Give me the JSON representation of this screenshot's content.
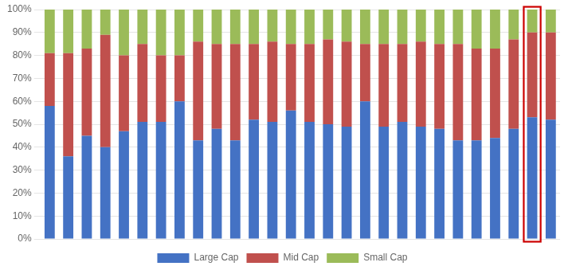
{
  "chart_data": {
    "type": "bar",
    "stacked": true,
    "categories": [
      null,
      null,
      null,
      null,
      null,
      null,
      null,
      null,
      null,
      null,
      null,
      null,
      null,
      null,
      null,
      null,
      null,
      null,
      null,
      null,
      null,
      null,
      null,
      null,
      null,
      null,
      null,
      null
    ],
    "series": [
      {
        "name": "Large Cap",
        "color": "#4472C4",
        "values": [
          0.58,
          0.36,
          0.45,
          0.4,
          0.47,
          0.51,
          0.51,
          0.6,
          0.43,
          0.48,
          0.43,
          0.52,
          0.51,
          0.56,
          0.51,
          0.5,
          0.49,
          0.6,
          0.49,
          0.51,
          0.49,
          0.48,
          0.43,
          0.43,
          0.44,
          0.48,
          0.53,
          0.52
        ]
      },
      {
        "name": "Mid Cap",
        "color": "#C0504D",
        "values": [
          0.23,
          0.45,
          0.38,
          0.49,
          0.33,
          0.34,
          0.29,
          0.2,
          0.43,
          0.37,
          0.42,
          0.33,
          0.35,
          0.29,
          0.34,
          0.37,
          0.37,
          0.25,
          0.36,
          0.34,
          0.37,
          0.37,
          0.42,
          0.4,
          0.39,
          0.39,
          0.37,
          0.38
        ]
      },
      {
        "name": "Small Cap",
        "color": "#9BBB59",
        "values": [
          0.19,
          0.19,
          0.17,
          0.11,
          0.2,
          0.15,
          0.2,
          0.2,
          0.14,
          0.15,
          0.15,
          0.15,
          0.14,
          0.15,
          0.15,
          0.13,
          0.14,
          0.15,
          0.15,
          0.15,
          0.14,
          0.15,
          0.15,
          0.17,
          0.17,
          0.13,
          0.1,
          0.1
        ]
      }
    ],
    "ylim": [
      0,
      1
    ],
    "yticks": [
      {
        "value": 0,
        "label": "0%"
      },
      {
        "value": 0.1,
        "label": "10%"
      },
      {
        "value": 0.2,
        "label": "20%"
      },
      {
        "value": 0.3,
        "label": "30%"
      },
      {
        "value": 0.4,
        "label": "40%"
      },
      {
        "value": 0.5,
        "label": "50%"
      },
      {
        "value": 0.6,
        "label": "60%"
      },
      {
        "value": 0.7,
        "label": "70%"
      },
      {
        "value": 0.8,
        "label": "80%"
      },
      {
        "value": 0.9,
        "label": "90%"
      },
      {
        "value": 1.0,
        "label": "100%"
      }
    ],
    "grid": true,
    "legend": "bottom",
    "tick_labels": "y",
    "annotations": [
      {
        "type": "rect",
        "x": 26,
        "color": "#CC0000"
      }
    ]
  }
}
